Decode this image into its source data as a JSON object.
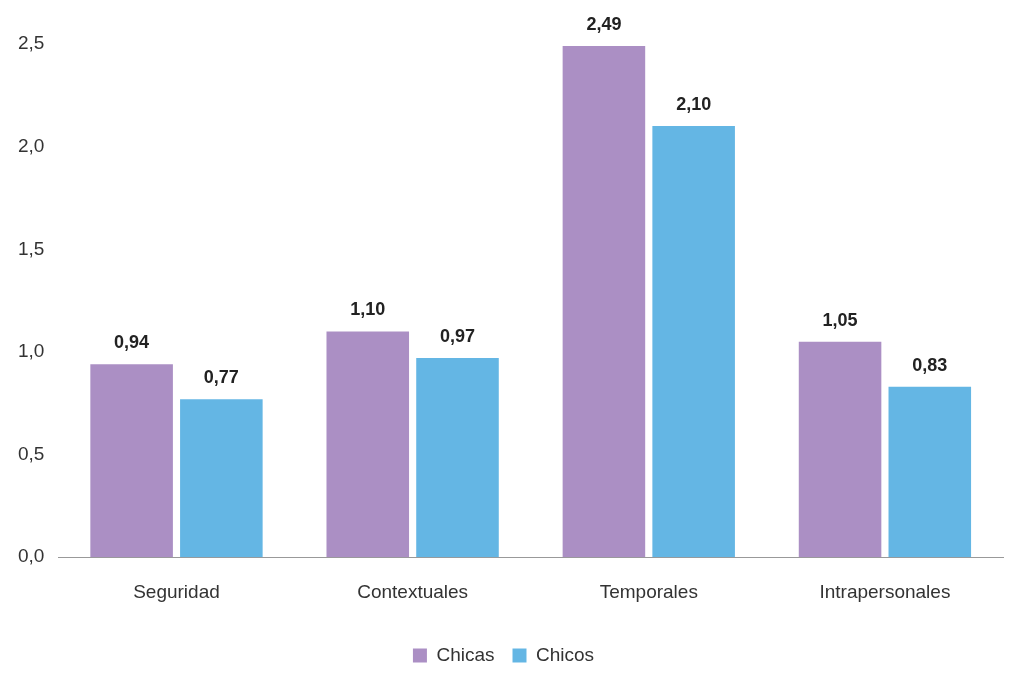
{
  "chart_data": {
    "type": "bar",
    "categories": [
      "Seguridad",
      "Contextuales",
      "Temporales",
      "Intrapersonales"
    ],
    "series": [
      {
        "name": "Chicas",
        "color": "#ab8fc4",
        "values": [
          0.94,
          1.1,
          2.49,
          1.05
        ],
        "value_labels": [
          "0,94",
          "1,10",
          "2,49",
          "1,05"
        ]
      },
      {
        "name": "Chicos",
        "color": "#64b6e4",
        "values": [
          0.77,
          0.97,
          2.1,
          0.83
        ],
        "value_labels": [
          "0,77",
          "0,97",
          "2,10",
          "0,83"
        ]
      }
    ],
    "ylim": [
      0,
      2.5
    ],
    "yticks": [
      {
        "value": 0,
        "label": "0,0"
      },
      {
        "value": 0.5,
        "label": "0,5"
      },
      {
        "value": 1,
        "label": "1,0"
      },
      {
        "value": 1.5,
        "label": "1,5"
      },
      {
        "value": 2,
        "label": "2,0"
      },
      {
        "value": 2.5,
        "label": "2,5"
      }
    ],
    "grid": false,
    "legend": "bottom"
  }
}
